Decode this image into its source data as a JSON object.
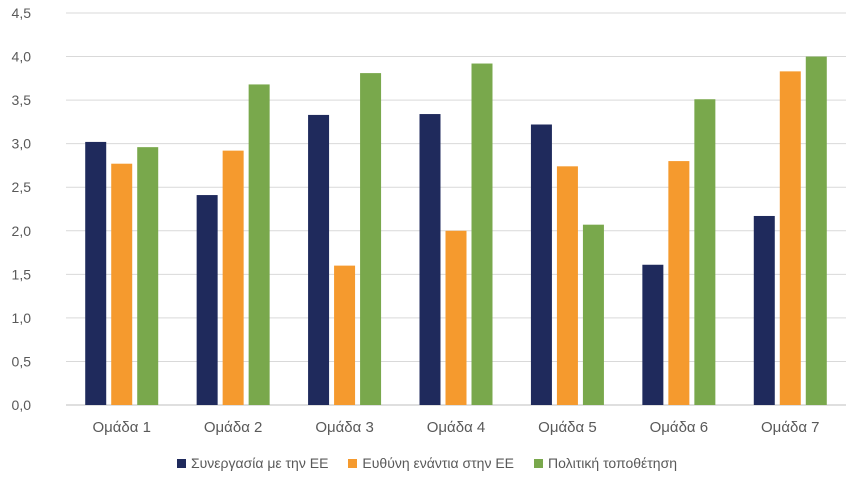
{
  "chart_data": {
    "type": "bar",
    "categories": [
      "Ομάδα 1",
      "Ομάδα 2",
      "Ομάδα 3",
      "Ομάδα 4",
      "Ομάδα 5",
      "Ομάδα 6",
      "Ομάδα 7"
    ],
    "series": [
      {
        "name": "Συνεργασία με την ΕΕ",
        "color": "#1f2a5c",
        "values": [
          3.02,
          2.41,
          3.33,
          3.34,
          3.22,
          1.61,
          2.17
        ]
      },
      {
        "name": "Ευθύνη ενάντια στην ΕΕ",
        "color": "#f59a2e",
        "values": [
          2.77,
          2.92,
          1.6,
          2.0,
          2.74,
          2.8,
          3.83
        ]
      },
      {
        "name": "Πολιτική τοποθέτηση",
        "color": "#79a84c",
        "values": [
          2.96,
          3.68,
          3.81,
          3.92,
          2.07,
          3.51,
          4.0
        ]
      }
    ],
    "ylim": [
      0,
      4.5
    ],
    "yticks": [
      "0,0",
      "0,5",
      "1,0",
      "1,5",
      "2,0",
      "2,5",
      "3,0",
      "3,5",
      "4,0",
      "4,5"
    ],
    "grid": true,
    "legend_position": "bottom"
  }
}
